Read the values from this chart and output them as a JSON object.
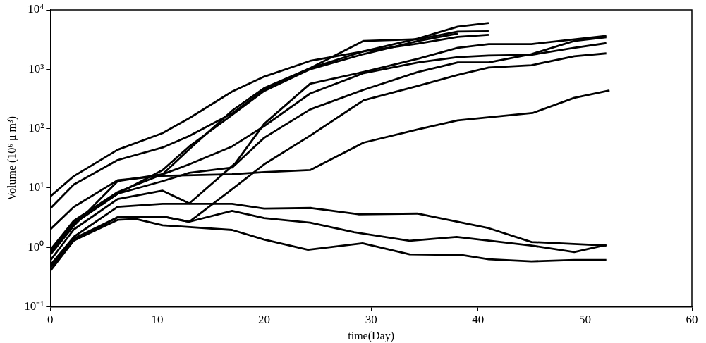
{
  "chart_data": {
    "type": "line",
    "xlabel": "time(Day)",
    "ylabel": "Volume (10⁶ μ m³)",
    "log": "y",
    "grid": false,
    "legend": false,
    "marker": "none",
    "line_style": "solid",
    "xlim": [
      0,
      60
    ],
    "xticks": [
      0,
      10,
      20,
      30,
      40,
      50,
      60
    ],
    "ylim": [
      0.1,
      10000
    ],
    "yticks": [
      {
        "value": 0.1,
        "label": "10⁻¹"
      },
      {
        "value": 1,
        "label": "10⁰"
      },
      {
        "value": 10,
        "label": "10¹"
      },
      {
        "value": 100,
        "label": "10²"
      },
      {
        "value": 1000,
        "label": "10³"
      },
      {
        "value": 10000,
        "label": "10⁴"
      }
    ],
    "series": [
      {
        "color": "#000000",
        "x": [
          0,
          2.2,
          6.3,
          10.5,
          13,
          17,
          20,
          24.3,
          29.3,
          34.4,
          38.1,
          41
        ],
        "values": [
          7.2,
          15.8,
          44,
          84,
          150,
          420,
          750,
          1380,
          2000,
          3300,
          5200,
          6000
        ]
      },
      {
        "color": "#000000",
        "x": [
          0,
          2.2,
          6.3,
          10.5,
          13,
          17,
          20,
          24.3,
          29.3,
          34.4,
          38.1,
          41
        ],
        "values": [
          4.5,
          11.4,
          29.5,
          48,
          75,
          180,
          450,
          1040,
          2000,
          2700,
          3500,
          3800
        ]
      },
      {
        "color": "#000000",
        "x": [
          0,
          2.2,
          6.3,
          10.5,
          13,
          17,
          20,
          24.3,
          29.3,
          34.4,
          38.1,
          41
        ],
        "values": [
          0.9,
          2.8,
          8.5,
          17,
          45,
          200,
          480,
          1040,
          3000,
          3200,
          4300,
          4350
        ]
      },
      {
        "color": "#000000",
        "x": [
          0,
          2.2,
          6.3,
          10.5,
          13,
          17,
          20,
          24.3,
          29.3,
          34.4,
          38.1
        ],
        "values": [
          0.8,
          2.5,
          8,
          20,
          50,
          170,
          430,
          1000,
          1800,
          3000,
          4000
        ]
      },
      {
        "color": "#000000",
        "x": [
          0,
          2.2,
          6.3,
          10.5,
          13,
          17.3,
          20,
          24.3,
          29.3,
          34.4,
          38.1,
          41,
          45,
          52
        ],
        "values": [
          0.6,
          2,
          6.5,
          9,
          5.5,
          26,
          120,
          570,
          900,
          1500,
          2300,
          2650,
          2650,
          3650
        ]
      },
      {
        "color": "#000000",
        "x": [
          0,
          2.2,
          6.3,
          10.5,
          13,
          17,
          20,
          24.3,
          29.3,
          34.4,
          38.1,
          41,
          45,
          49,
          52
        ],
        "values": [
          0.75,
          2.3,
          13,
          17,
          25,
          50,
          110,
          390,
          860,
          1300,
          1600,
          1700,
          1750,
          2300,
          2750
        ]
      },
      {
        "color": "#000000",
        "x": [
          0,
          2.2,
          6.3,
          10.5,
          13,
          17,
          20,
          24.3,
          29.3,
          34.4,
          38.1,
          41,
          45,
          49,
          52
        ],
        "values": [
          0.85,
          2.6,
          8,
          13,
          18,
          22,
          70,
          210,
          450,
          900,
          1300,
          1300,
          1800,
          3000,
          3450
        ]
      },
      {
        "color": "#000000",
        "x": [
          0,
          2.2,
          6.3,
          10.5,
          13,
          17,
          20,
          24.3,
          29.3,
          34.4,
          38.1,
          41,
          45,
          49,
          52
        ],
        "values": [
          0.5,
          1.4,
          3.2,
          3.3,
          2.7,
          9.5,
          25,
          76,
          300,
          525,
          800,
          1070,
          1170,
          1650,
          1850
        ]
      },
      {
        "color": "#000000",
        "x": [
          0,
          2.2,
          6.3,
          10.5,
          17,
          20,
          24.3,
          29.3,
          34.4,
          38.1,
          45.1,
          49,
          52.3
        ],
        "values": [
          2,
          4.8,
          13.5,
          16,
          17,
          18.5,
          20,
          58,
          97,
          138,
          183,
          330,
          440
        ]
      },
      {
        "color": "#000000",
        "x": [
          0,
          2.2,
          6.3,
          10.5,
          17,
          20,
          24.4,
          28.8,
          34.3,
          41,
          45,
          52
        ],
        "values": [
          0.5,
          1.5,
          4.8,
          5.4,
          5.4,
          4.5,
          4.6,
          3.6,
          3.7,
          2.1,
          1.23,
          1.07
        ]
      },
      {
        "color": "#000000",
        "x": [
          0,
          2.2,
          6.3,
          10.5,
          13,
          17,
          20,
          24.3,
          28.4,
          33.6,
          38,
          45,
          49,
          52
        ],
        "values": [
          0.45,
          1.3,
          3.2,
          3.3,
          2.7,
          4.1,
          3.1,
          2.6,
          1.8,
          1.29,
          1.5,
          1.07,
          0.83,
          1.1
        ]
      },
      {
        "color": "#000000",
        "x": [
          0,
          2.2,
          6.3,
          8,
          10.5,
          17,
          20,
          24.1,
          29.2,
          33.6,
          38.5,
          41,
          45,
          49,
          52
        ],
        "values": [
          0.4,
          1.3,
          2.9,
          3,
          2.35,
          1.96,
          1.35,
          0.91,
          1.17,
          0.76,
          0.74,
          0.63,
          0.58,
          0.61,
          0.61
        ]
      }
    ]
  }
}
